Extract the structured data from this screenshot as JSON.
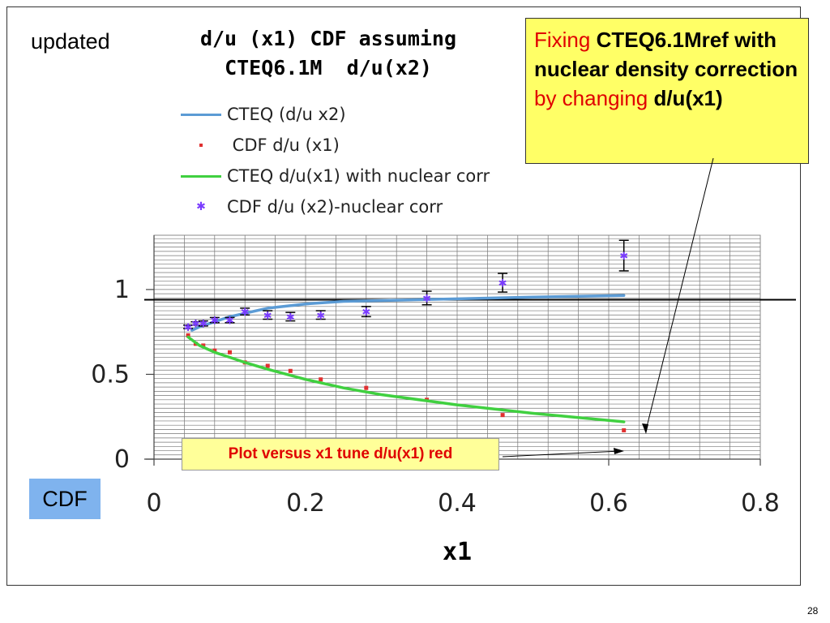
{
  "slide": {
    "updated_label": "updated",
    "title_line1": "d/u (x1) CDF assuming",
    "title_line2": "CTEQ6.1M  d/u(x2)",
    "note": {
      "part1": "Fixing ",
      "part2": "CTEQ6.1Mref with nuclear density correction",
      "part3": " by changing ",
      "part4": "d/u(x1)"
    },
    "cdf_box": "CDF",
    "plot_label": "Plot versus x1 tune d/u(x1) red",
    "page_number": "28"
  },
  "chart_data": {
    "type": "line",
    "xlabel": "x1",
    "ylabel": "",
    "xlim": [
      0,
      0.8
    ],
    "ylim": [
      0,
      1.32
    ],
    "x_ticks": [
      "0",
      "0.2",
      "0.4",
      "0.6",
      "0.8"
    ],
    "y_ticks": [
      "0",
      "0.5",
      "1"
    ],
    "reference_line_y": 0.94,
    "grid": true,
    "legend_position": "top-left",
    "series": [
      {
        "name": "CTEQ (d/u x2)",
        "kind": "line",
        "color": "#5b9bd5",
        "x": [
          0.05,
          0.06,
          0.08,
          0.1,
          0.12,
          0.15,
          0.2,
          0.25,
          0.3,
          0.4,
          0.5,
          0.62
        ],
        "y": [
          0.76,
          0.78,
          0.81,
          0.84,
          0.86,
          0.89,
          0.915,
          0.93,
          0.935,
          0.945,
          0.955,
          0.965
        ]
      },
      {
        "name": " CDF d/u (x1)",
        "kind": "points",
        "color": "#e03030",
        "x": [
          0.045,
          0.055,
          0.065,
          0.08,
          0.1,
          0.12,
          0.15,
          0.18,
          0.22,
          0.28,
          0.36,
          0.46,
          0.62
        ],
        "y": [
          0.73,
          0.68,
          0.67,
          0.64,
          0.63,
          0.57,
          0.55,
          0.52,
          0.47,
          0.42,
          0.35,
          0.26,
          0.17
        ]
      },
      {
        "name": "CTEQ d/u(x1) with nuclear corr",
        "kind": "line",
        "color": "#40d040",
        "x": [
          0.045,
          0.06,
          0.08,
          0.1,
          0.12,
          0.15,
          0.2,
          0.25,
          0.3,
          0.4,
          0.5,
          0.62
        ],
        "y": [
          0.72,
          0.67,
          0.63,
          0.6,
          0.57,
          0.53,
          0.47,
          0.42,
          0.38,
          0.32,
          0.27,
          0.22
        ]
      },
      {
        "name": "CDF d/u (x2)-nuclear corr",
        "kind": "points_err",
        "color": "#7a3cff",
        "x": [
          0.045,
          0.055,
          0.065,
          0.08,
          0.1,
          0.12,
          0.15,
          0.18,
          0.22,
          0.28,
          0.36,
          0.46,
          0.62
        ],
        "y": [
          0.78,
          0.8,
          0.8,
          0.82,
          0.82,
          0.87,
          0.85,
          0.84,
          0.85,
          0.87,
          0.95,
          1.04,
          1.2
        ],
        "err": [
          0.01,
          0.01,
          0.015,
          0.015,
          0.015,
          0.02,
          0.025,
          0.025,
          0.025,
          0.03,
          0.04,
          0.055,
          0.09
        ]
      }
    ]
  }
}
